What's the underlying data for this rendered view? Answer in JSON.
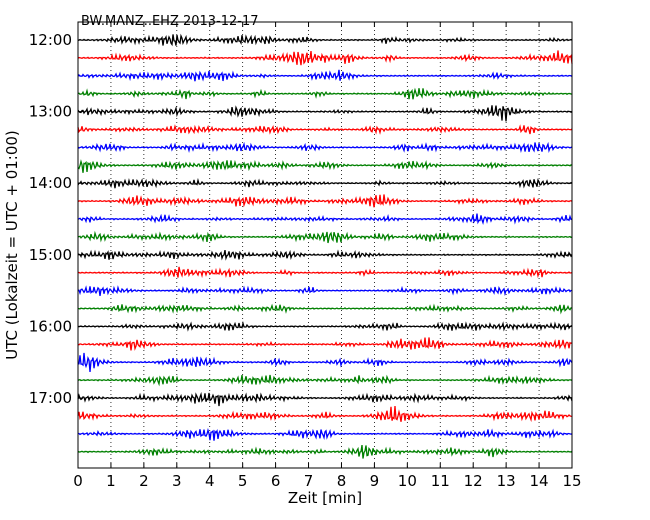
{
  "chart_data": {
    "type": "line",
    "title": "BW.MANZ..EHZ 2013-12-17",
    "xlabel": "Zeit  [min]",
    "ylabel": "UTC (Lokalzeit = UTC + 01:00)",
    "xlim": [
      0,
      15
    ],
    "x_ticks": [
      "0",
      "1",
      "2",
      "3",
      "4",
      "5",
      "6",
      "7",
      "8",
      "9",
      "10",
      "11",
      "12",
      "13",
      "14",
      "15"
    ],
    "y_ticks": [
      "12:00",
      "13:00",
      "14:00",
      "15:00",
      "16:00",
      "17:00"
    ],
    "rows_per_hour": 4,
    "row_count": 24,
    "row_interval_min": 15,
    "vertical_grid": "dotted",
    "colors": [
      "#000000",
      "#ff0000",
      "#0000ff",
      "#008000"
    ]
  }
}
